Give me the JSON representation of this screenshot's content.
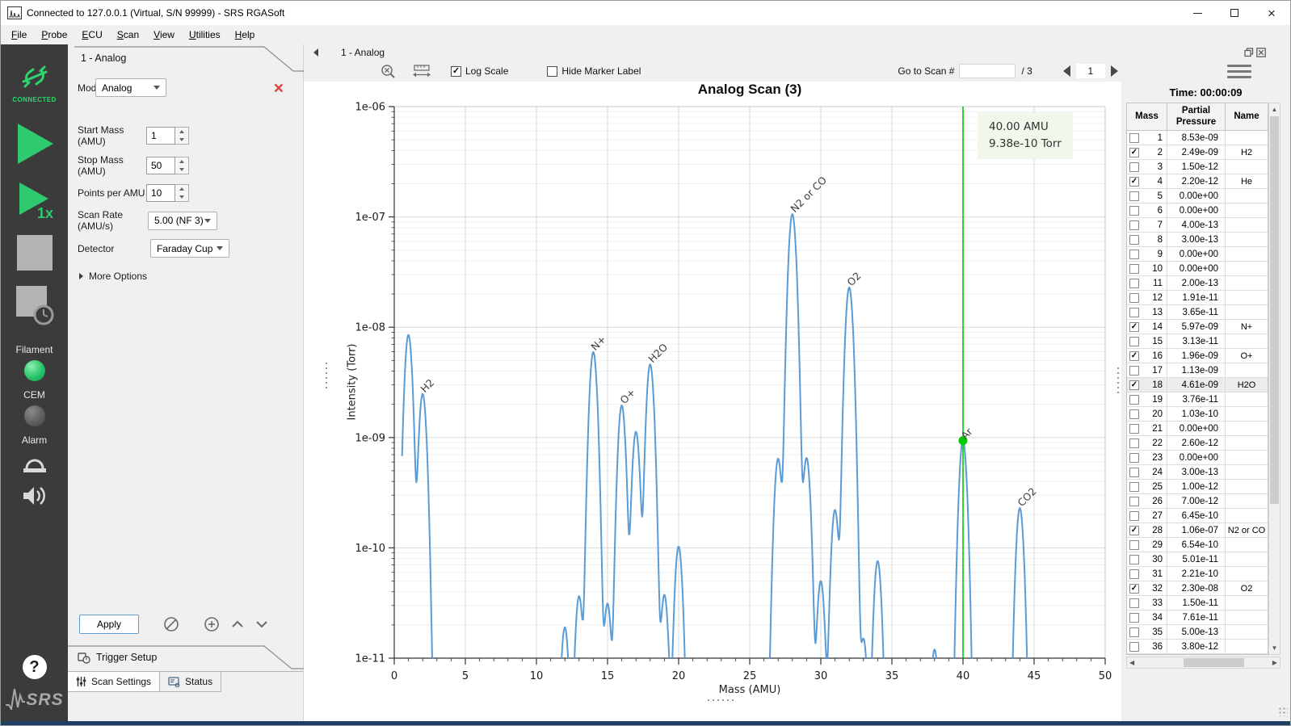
{
  "window": {
    "title": "Connected to 127.0.0.1 (Virtual, S/N 99999) - SRS RGASoft"
  },
  "menu": {
    "items": [
      "File",
      "Probe",
      "ECU",
      "Scan",
      "View",
      "Utilities",
      "Help"
    ]
  },
  "sidebar": {
    "connected_label": "CONNECTED",
    "filament_label": "Filament",
    "cem_label": "CEM",
    "alarm_label": "Alarm",
    "help_label": "?",
    "brand": "SRS",
    "colors": {
      "green": "#2fd36f",
      "led_on": "#27c46c",
      "led_off": "#5f5f5f"
    }
  },
  "settings": {
    "tab_title": "1 - Analog",
    "mode": {
      "label": "Mode",
      "value": "Analog"
    },
    "start_mass": {
      "label": "Start Mass (AMU)",
      "value": "1"
    },
    "stop_mass": {
      "label": "Stop Mass (AMU)",
      "value": "50"
    },
    "points_per_amu": {
      "label": "Points per AMU",
      "value": "10"
    },
    "scan_rate": {
      "label": "Scan Rate (AMU/s)",
      "value": "5.00 (NF 3)"
    },
    "detector": {
      "label": "Detector",
      "value": "Faraday Cup"
    },
    "more_options_label": "More Options",
    "apply_label": "Apply",
    "trigger_tab_label": "Trigger Setup",
    "bottom_tabs": {
      "scan_settings": "Scan Settings",
      "status": "Status"
    }
  },
  "chart_header": {
    "tab_label": "1 - Analog",
    "log_scale_label": "Log Scale",
    "log_scale_checked": true,
    "hide_marker_label": "Hide Marker Label",
    "hide_marker_checked": false,
    "goto_label": "Go to Scan #",
    "goto_value": "",
    "goto_total": "/ 3",
    "current_scan": "1"
  },
  "right_panel": {
    "time_label": "Time: 00:00:09",
    "table": {
      "columns": [
        "Mass",
        "Partial Pressure",
        "Name"
      ],
      "highlighted_mass": 18,
      "rows": [
        {
          "mass": 1,
          "pp": "8.53e-09",
          "name": "",
          "checked": false
        },
        {
          "mass": 2,
          "pp": "2.49e-09",
          "name": "H2",
          "checked": true
        },
        {
          "mass": 3,
          "pp": "1.50e-12",
          "name": "",
          "checked": false
        },
        {
          "mass": 4,
          "pp": "2.20e-12",
          "name": "He",
          "checked": true
        },
        {
          "mass": 5,
          "pp": "0.00e+00",
          "name": "",
          "checked": false
        },
        {
          "mass": 6,
          "pp": "0.00e+00",
          "name": "",
          "checked": false
        },
        {
          "mass": 7,
          "pp": "4.00e-13",
          "name": "",
          "checked": false
        },
        {
          "mass": 8,
          "pp": "3.00e-13",
          "name": "",
          "checked": false
        },
        {
          "mass": 9,
          "pp": "0.00e+00",
          "name": "",
          "checked": false
        },
        {
          "mass": 10,
          "pp": "0.00e+00",
          "name": "",
          "checked": false
        },
        {
          "mass": 11,
          "pp": "2.00e-13",
          "name": "",
          "checked": false
        },
        {
          "mass": 12,
          "pp": "1.91e-11",
          "name": "",
          "checked": false
        },
        {
          "mass": 13,
          "pp": "3.65e-11",
          "name": "",
          "checked": false
        },
        {
          "mass": 14,
          "pp": "5.97e-09",
          "name": "N+",
          "checked": true
        },
        {
          "mass": 15,
          "pp": "3.13e-11",
          "name": "",
          "checked": false
        },
        {
          "mass": 16,
          "pp": "1.96e-09",
          "name": "O+",
          "checked": true
        },
        {
          "mass": 17,
          "pp": "1.13e-09",
          "name": "",
          "checked": false
        },
        {
          "mass": 18,
          "pp": "4.61e-09",
          "name": "H2O",
          "checked": true
        },
        {
          "mass": 19,
          "pp": "3.76e-11",
          "name": "",
          "checked": false
        },
        {
          "mass": 20,
          "pp": "1.03e-10",
          "name": "",
          "checked": false
        },
        {
          "mass": 21,
          "pp": "0.00e+00",
          "name": "",
          "checked": false
        },
        {
          "mass": 22,
          "pp": "2.60e-12",
          "name": "",
          "checked": false
        },
        {
          "mass": 23,
          "pp": "0.00e+00",
          "name": "",
          "checked": false
        },
        {
          "mass": 24,
          "pp": "3.00e-13",
          "name": "",
          "checked": false
        },
        {
          "mass": 25,
          "pp": "1.00e-12",
          "name": "",
          "checked": false
        },
        {
          "mass": 26,
          "pp": "7.00e-12",
          "name": "",
          "checked": false
        },
        {
          "mass": 27,
          "pp": "6.45e-10",
          "name": "",
          "checked": false
        },
        {
          "mass": 28,
          "pp": "1.06e-07",
          "name": "N2 or CO",
          "checked": true
        },
        {
          "mass": 29,
          "pp": "6.54e-10",
          "name": "",
          "checked": false
        },
        {
          "mass": 30,
          "pp": "5.01e-11",
          "name": "",
          "checked": false
        },
        {
          "mass": 31,
          "pp": "2.21e-10",
          "name": "",
          "checked": false
        },
        {
          "mass": 32,
          "pp": "2.30e-08",
          "name": "O2",
          "checked": true
        },
        {
          "mass": 33,
          "pp": "1.50e-11",
          "name": "",
          "checked": false
        },
        {
          "mass": 34,
          "pp": "7.61e-11",
          "name": "",
          "checked": false
        },
        {
          "mass": 35,
          "pp": "5.00e-13",
          "name": "",
          "checked": false
        },
        {
          "mass": 36,
          "pp": "3.80e-12",
          "name": "",
          "checked": false
        }
      ]
    }
  },
  "chart_data": {
    "type": "line",
    "title": "Analog Scan (3)",
    "xlabel": "Mass (AMU)",
    "ylabel": "Intensity (Torr)",
    "xlim": [
      0,
      50
    ],
    "x_ticks": [
      0,
      5,
      10,
      15,
      20,
      25,
      30,
      35,
      40,
      45,
      50
    ],
    "ylog": true,
    "ylim": [
      1e-11,
      1e-06
    ],
    "y_ticks": [
      {
        "exp": -6,
        "label": "1e-06"
      },
      {
        "exp": -7,
        "label": "1e-07"
      },
      {
        "exp": -8,
        "label": "1e-08"
      },
      {
        "exp": -9,
        "label": "1e-09"
      },
      {
        "exp": -10,
        "label": "1e-10"
      },
      {
        "exp": -11,
        "label": "1e-11"
      }
    ],
    "grid": true,
    "line_color": "#5b9bd5",
    "marker_color": "#00cc00",
    "series_masses": [
      1,
      2,
      3,
      4,
      5,
      6,
      7,
      8,
      9,
      10,
      11,
      12,
      13,
      14,
      15,
      16,
      17,
      18,
      19,
      20,
      21,
      22,
      23,
      24,
      25,
      26,
      27,
      28,
      29,
      30,
      31,
      32,
      33,
      34,
      35,
      36,
      37,
      38,
      39,
      40,
      41,
      42,
      43,
      44,
      45,
      46,
      47,
      48,
      49,
      50
    ],
    "series_pressures": [
      8.53e-09,
      2.49e-09,
      1.5e-12,
      2.2e-12,
      0,
      0,
      4e-13,
      3e-13,
      0,
      0,
      2e-13,
      1.91e-11,
      3.65e-11,
      5.97e-09,
      3.13e-11,
      1.96e-09,
      1.13e-09,
      4.61e-09,
      3.76e-11,
      1.03e-10,
      0,
      2.6e-12,
      0,
      3e-13,
      1e-12,
      7e-12,
      6.45e-10,
      1.06e-07,
      6.54e-10,
      5.01e-11,
      2.21e-10,
      2.3e-08,
      1.5e-11,
      7.61e-11,
      5e-13,
      3.8e-12,
      0,
      1.2e-11,
      0,
      9.38e-10,
      0,
      0,
      0,
      2.3e-10,
      0,
      0,
      0,
      0,
      0,
      0
    ],
    "peaks": [
      {
        "mass": 2,
        "label": "H2"
      },
      {
        "mass": 14,
        "label": "N+"
      },
      {
        "mass": 16,
        "label": "O+"
      },
      {
        "mass": 18,
        "label": "H2O"
      },
      {
        "mass": 28,
        "label": "N2 or CO"
      },
      {
        "mass": 32,
        "label": "O2"
      },
      {
        "mass": 40,
        "label": "Ar"
      },
      {
        "mass": 44,
        "label": "CO2"
      }
    ],
    "marker": {
      "mass": 40,
      "pressure": 9.38e-10,
      "line1": "40.00 AMU",
      "line2": "9.38e-10 Torr"
    }
  }
}
